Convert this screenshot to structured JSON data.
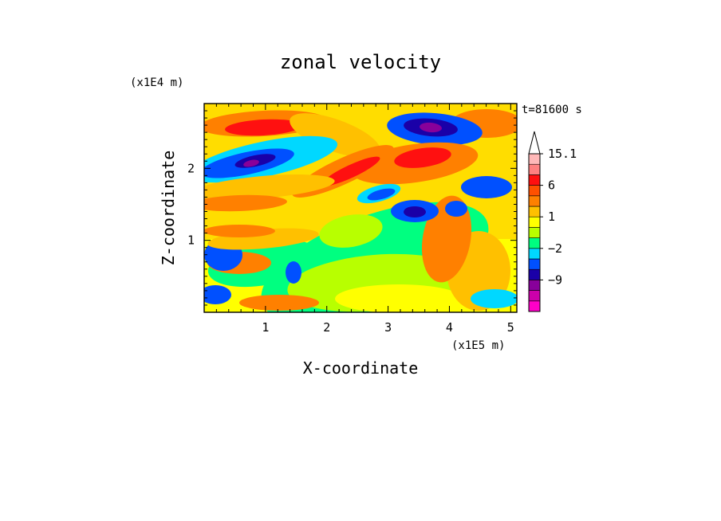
{
  "chart_data": {
    "type": "heatmap",
    "title": "zonal velocity",
    "xlabel": "X-coordinate",
    "ylabel": "Z-coordinate",
    "x_scale_label": "(x1E5 m)",
    "y_scale_label": "(x1E4 m)",
    "time_label": "t=81600 s",
    "xlim": [
      0,
      5.1
    ],
    "ylim": [
      0,
      2.9
    ],
    "x_ticks": [
      1,
      2,
      3,
      4,
      5
    ],
    "y_ticks": [
      1,
      2
    ],
    "colorbar": {
      "levels": [
        -15,
        -12,
        -9,
        -6,
        -3,
        -2,
        -1,
        0,
        1,
        2,
        3,
        6,
        9,
        12,
        15.1
      ],
      "colors": [
        "#ff00c8",
        "#cc00aa",
        "#88009a",
        "#1a00a8",
        "#0050ff",
        "#00d8ff",
        "#00ff80",
        "#b8ff00",
        "#ffff00",
        "#ffc000",
        "#ff8000",
        "#ff5000",
        "#ff1010",
        "#ff8080",
        "#ffb8b8"
      ],
      "tick_labels": [
        {
          "value": 15.1,
          "label": "15.1"
        },
        {
          "value": 6,
          "label": "6"
        },
        {
          "value": 1,
          "label": "1"
        },
        {
          "value": -2,
          "label": "−2"
        },
        {
          "value": -9,
          "label": "−9"
        }
      ],
      "extend": "max"
    },
    "grid": false
  }
}
